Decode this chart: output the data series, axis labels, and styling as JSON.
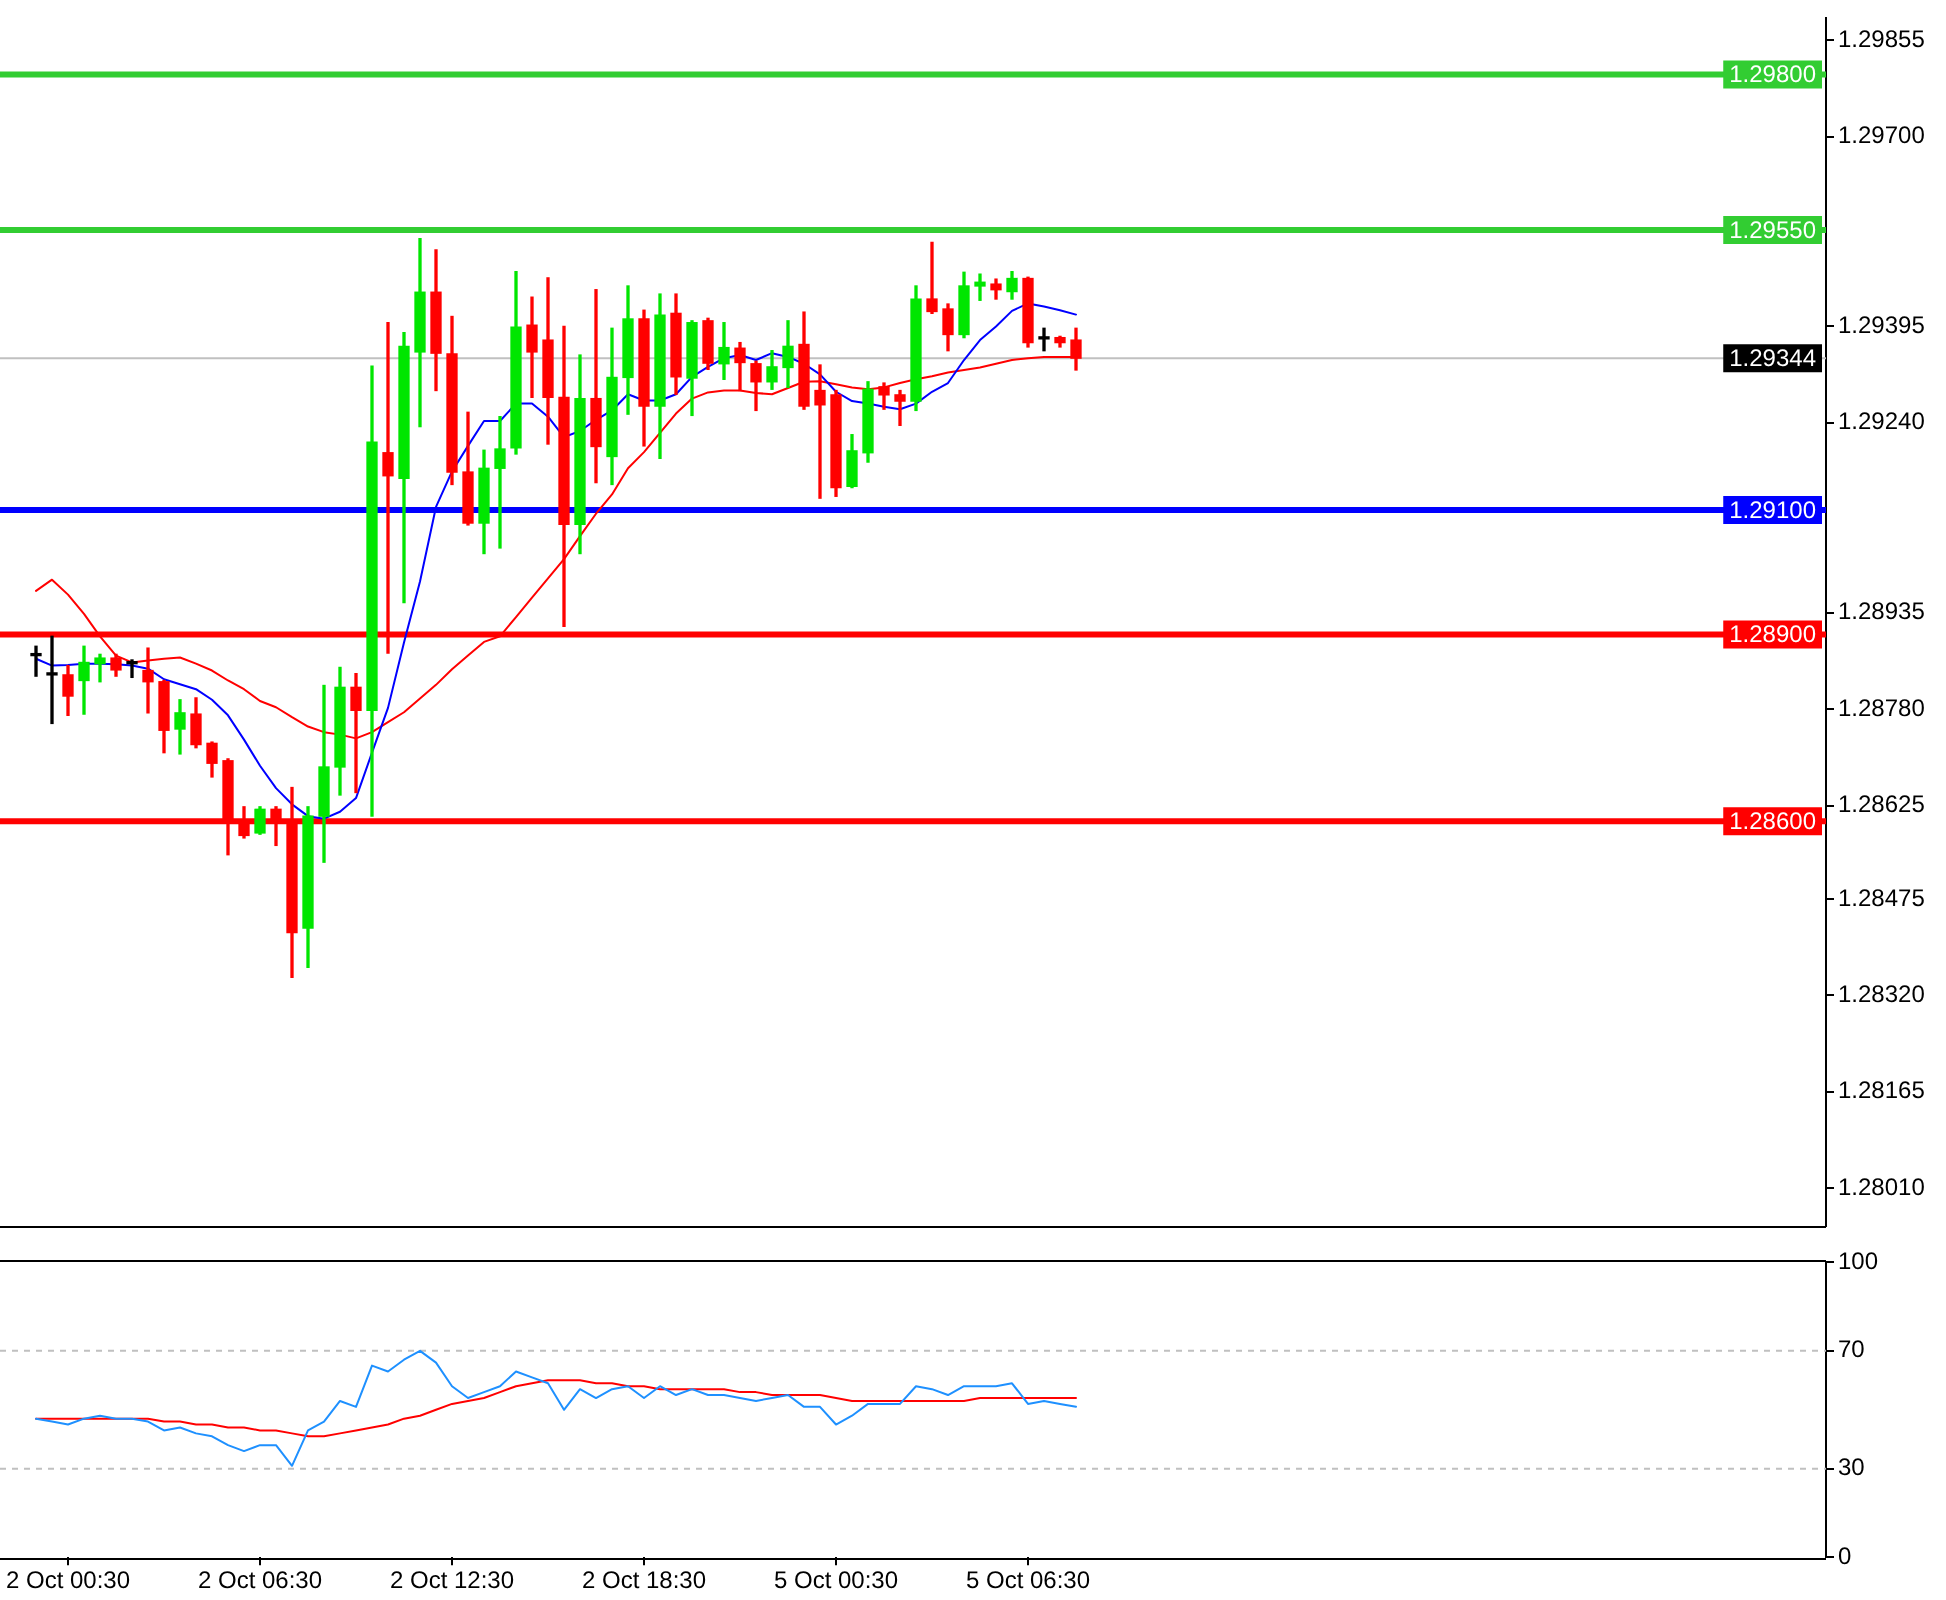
{
  "chart_data": [
    {
      "type": "candlestick",
      "categories": [
        null,
        null,
        null,
        null,
        null,
        null,
        null,
        null,
        null,
        null,
        null,
        null,
        null,
        null,
        null,
        null,
        null,
        null,
        null,
        null,
        null,
        null,
        null,
        null,
        null,
        null,
        null,
        null,
        null,
        null,
        null,
        null,
        null,
        null,
        null,
        null,
        null,
        null,
        null,
        null,
        null,
        null,
        null,
        null,
        null,
        null,
        null,
        null,
        null,
        null,
        null,
        null,
        null,
        null,
        null,
        null,
        null,
        null,
        null,
        null,
        null,
        null,
        null,
        null,
        null,
        null
      ],
      "ohlc": [
        [
          1.28866,
          1.28881,
          1.28833,
          1.28866
        ],
        [
          1.28835,
          1.28897,
          1.28757,
          1.28835
        ],
        [
          1.28835,
          1.2885,
          1.2877,
          1.28801
        ],
        [
          1.28826,
          1.28881,
          1.28772,
          1.28855
        ],
        [
          1.28853,
          1.28868,
          1.28824,
          1.28862
        ],
        [
          1.28862,
          1.28868,
          1.28833,
          1.28843
        ],
        [
          1.28853,
          1.28859,
          1.28831,
          1.28853
        ],
        [
          1.28842,
          1.28878,
          1.28774,
          1.28824
        ],
        [
          1.28824,
          1.28826,
          1.2871,
          1.28746
        ],
        [
          1.28748,
          1.28795,
          1.28708,
          1.28774
        ],
        [
          1.28772,
          1.28798,
          1.28718,
          1.28723
        ],
        [
          1.28725,
          1.28727,
          1.28671,
          1.28693
        ],
        [
          1.28697,
          1.287,
          1.28546,
          1.28598
        ],
        [
          1.286,
          1.28623,
          1.28573,
          1.28577
        ],
        [
          1.28581,
          1.28623,
          1.28579,
          1.28619
        ],
        [
          1.28619,
          1.28623,
          1.28561,
          1.28602
        ],
        [
          1.286,
          1.28654,
          1.28349,
          1.28421
        ],
        [
          1.28428,
          1.28623,
          1.28365,
          1.28608
        ],
        [
          1.28608,
          1.28818,
          1.28534,
          1.28687
        ],
        [
          1.28687,
          1.28847,
          1.28642,
          1.28815
        ],
        [
          1.28815,
          1.28837,
          1.28646,
          1.28778
        ],
        [
          1.28778,
          1.29331,
          1.28608,
          1.29209
        ],
        [
          1.29192,
          1.29401,
          1.2887,
          1.29155
        ],
        [
          1.29151,
          1.29385,
          1.28951,
          1.29363
        ],
        [
          1.29354,
          1.29536,
          1.29234,
          1.2945
        ],
        [
          1.2945,
          1.29518,
          1.29292,
          1.29352
        ],
        [
          1.29351,
          1.29411,
          1.29141,
          1.29161
        ],
        [
          1.29161,
          1.29257,
          1.29076,
          1.29079
        ],
        [
          1.29079,
          1.29196,
          1.2903,
          1.29167
        ],
        [
          1.29167,
          1.2925,
          1.29039,
          1.29198
        ],
        [
          1.292,
          1.29483,
          1.2919,
          1.29394
        ],
        [
          1.29397,
          1.29442,
          1.29281,
          1.29354
        ],
        [
          1.29373,
          1.29473,
          1.29206,
          1.29281
        ],
        [
          1.29281,
          1.29395,
          1.28913,
          1.29077
        ],
        [
          1.29077,
          1.29349,
          1.2903,
          1.29279
        ],
        [
          1.29279,
          1.29454,
          1.29144,
          1.29202
        ],
        [
          1.29186,
          1.29392,
          1.29141,
          1.29313
        ],
        [
          1.29313,
          1.2946,
          1.29254,
          1.29407
        ],
        [
          1.29407,
          1.29421,
          1.29203,
          1.29267
        ],
        [
          1.29267,
          1.29447,
          1.29183,
          1.29413
        ],
        [
          1.29416,
          1.29447,
          1.29286,
          1.29314
        ],
        [
          1.29312,
          1.29404,
          1.29252,
          1.29401
        ],
        [
          1.29404,
          1.29408,
          1.29326,
          1.29336
        ],
        [
          1.29335,
          1.29401,
          1.2931,
          1.29361
        ],
        [
          1.2936,
          1.29369,
          1.29292,
          1.29337
        ],
        [
          1.29335,
          1.29339,
          1.2926,
          1.29306
        ],
        [
          1.29306,
          1.29356,
          1.29294,
          1.2933
        ],
        [
          1.29329,
          1.29404,
          1.29297,
          1.29363
        ],
        [
          1.29366,
          1.29418,
          1.29262,
          1.29267
        ],
        [
          1.29292,
          1.29333,
          1.29119,
          1.29269
        ],
        [
          1.29285,
          1.29292,
          1.29122,
          1.29136
        ],
        [
          1.29138,
          1.29221,
          1.29136,
          1.29195
        ],
        [
          1.29192,
          1.29306,
          1.29177,
          1.29294
        ],
        [
          1.29298,
          1.29304,
          1.29262,
          1.29285
        ],
        [
          1.29285,
          1.29292,
          1.29236,
          1.29275
        ],
        [
          1.29275,
          1.2946,
          1.2926,
          1.29439
        ],
        [
          1.29439,
          1.2953,
          1.29416,
          1.29419
        ],
        [
          1.29423,
          1.29431,
          1.29356,
          1.29382
        ],
        [
          1.29382,
          1.29482,
          1.29377,
          1.2946
        ],
        [
          1.2946,
          1.29479,
          1.29437,
          1.29466
        ],
        [
          1.29463,
          1.29471,
          1.29439,
          1.29454
        ],
        [
          1.29451,
          1.29483,
          1.29439,
          1.29472
        ],
        [
          1.29472,
          1.29474,
          1.29362,
          1.29369
        ],
        [
          1.29375,
          1.29392,
          1.29356,
          1.29375
        ],
        [
          1.29377,
          1.29379,
          1.29362,
          1.29369
        ],
        [
          1.29373,
          1.29392,
          1.29325,
          1.29344
        ]
      ],
      "colors": [
        "#000000",
        "#000000",
        "#ff0000",
        "#00e600",
        "#00e600",
        "#ff0000",
        "#000000",
        "#ff0000",
        "#ff0000",
        "#00e600",
        "#ff0000",
        "#ff0000",
        "#ff0000",
        "#ff0000",
        "#00e600",
        "#ff0000",
        "#ff0000",
        "#00e600",
        "#00e600",
        "#00e600",
        "#ff0000",
        "#00e600",
        "#ff0000",
        "#00e600",
        "#00e600",
        "#ff0000",
        "#ff0000",
        "#ff0000",
        "#00e600",
        "#00e600",
        "#00e600",
        "#ff0000",
        "#ff0000",
        "#ff0000",
        "#00e600",
        "#ff0000",
        "#00e600",
        "#00e600",
        "#ff0000",
        "#00e600",
        "#ff0000",
        "#00e600",
        "#ff0000",
        "#00e600",
        "#ff0000",
        "#ff0000",
        "#00e600",
        "#00e600",
        "#ff0000",
        "#ff0000",
        "#ff0000",
        "#00e600",
        "#00e600",
        "#ff0000",
        "#ff0000",
        "#00e600",
        "#ff0000",
        "#ff0000",
        "#00e600",
        "#00e600",
        "#ff0000",
        "#00e600",
        "#ff0000",
        "#000000",
        "#ff0000",
        "#ff0000"
      ],
      "series": [
        {
          "type": "line",
          "color": "#0000ff",
          "values": [
            1.28861,
            1.2885,
            1.28851,
            1.28853,
            1.28853,
            1.28852,
            1.2885,
            1.28845,
            1.28828,
            1.2882,
            1.28812,
            1.28795,
            1.2877,
            1.28731,
            1.28689,
            1.28653,
            1.28627,
            1.28608,
            1.28604,
            1.28615,
            1.28637,
            1.2871,
            1.28782,
            1.28887,
            1.28985,
            1.29105,
            1.29162,
            1.29203,
            1.29243,
            1.29243,
            1.29271,
            1.29271,
            1.2925,
            1.29217,
            1.29227,
            1.29245,
            1.2926,
            1.29286,
            1.29276,
            1.29276,
            1.29286,
            1.29314,
            1.2933,
            1.29344,
            1.29349,
            1.29341,
            1.29352,
            1.29346,
            1.29335,
            1.29318,
            1.2929,
            1.29275,
            1.29271,
            1.29266,
            1.29262,
            1.29271,
            1.2929,
            1.29304,
            1.29341,
            1.29373,
            1.29395,
            1.2942,
            1.29432,
            1.29427,
            1.29421,
            1.29414
          ]
        },
        {
          "type": "line",
          "color": "#ff0000",
          "values": [
            1.2897,
            1.28988,
            1.28964,
            1.28933,
            1.28897,
            1.28866,
            1.28855,
            1.28858,
            1.28861,
            1.28863,
            1.28853,
            1.28842,
            1.28826,
            1.28812,
            1.28793,
            1.28783,
            1.28767,
            1.28752,
            1.28743,
            1.28739,
            1.28733,
            1.28743,
            1.28759,
            1.28775,
            1.28797,
            1.28819,
            1.28844,
            1.28866,
            1.28888,
            1.28897,
            1.28928,
            1.28959,
            1.2899,
            1.29021,
            1.29058,
            1.29094,
            1.29125,
            1.29167,
            1.29193,
            1.29224,
            1.29255,
            1.29279,
            1.29289,
            1.29292,
            1.29292,
            1.29288,
            1.29286,
            1.29296,
            1.29306,
            1.29307,
            1.29302,
            1.29297,
            1.29294,
            1.29297,
            1.29304,
            1.2931,
            1.29315,
            1.29321,
            1.29325,
            1.29329,
            1.29335,
            1.29341,
            1.29344,
            1.29346,
            1.29346,
            1.29346
          ]
        }
      ],
      "ylim": [
        1.2795,
        1.2989
      ],
      "yticks": [
        1.29855,
        {
          "value": 1.297,
          "label": "1.29700"
        },
        1.29395,
        {
          "value": 1.2924,
          "label": "1.29240"
        },
        1.28935,
        {
          "value": 1.2878,
          "label": "1.28780"
        },
        1.28625,
        1.28475,
        {
          "value": 1.2832,
          "label": "1.28320"
        },
        1.28165,
        {
          "value": 1.2801,
          "label": "1.28010"
        }
      ],
      "ref_lines": [
        {
          "axis": "y",
          "value": 1.298,
          "label": "1.29800",
          "color": "#32cd32"
        },
        {
          "axis": "y",
          "value": 1.2955,
          "label": "1.29550",
          "color": "#32cd32"
        },
        {
          "axis": "y",
          "value": 1.29344,
          "label": "1.29344",
          "color": "#c0c0c0"
        },
        {
          "axis": "y",
          "value": 1.291,
          "label": "1.29100",
          "color": "#0000ff"
        },
        {
          "axis": "y",
          "value": 1.289,
          "label": "1.28900",
          "color": "#ff0000"
        },
        {
          "axis": "y",
          "value": 1.286,
          "label": "1.28600",
          "color": "#ff0000"
        }
      ],
      "marker": "none",
      "tick_labels": "y"
    },
    {
      "type": "line",
      "categories": [
        null,
        null,
        "2 Oct 00:30",
        null,
        null,
        null,
        null,
        null,
        null,
        null,
        null,
        null,
        null,
        null,
        "2 Oct 06:30",
        null,
        null,
        null,
        null,
        null,
        null,
        null,
        null,
        null,
        null,
        null,
        "2 Oct 12:30",
        null,
        null,
        null,
        null,
        null,
        null,
        null,
        null,
        null,
        null,
        null,
        "2 Oct 18:30",
        null,
        null,
        null,
        null,
        null,
        null,
        null,
        null,
        null,
        null,
        null,
        "5 Oct 00:30",
        null,
        null,
        null,
        null,
        null,
        null,
        null,
        null,
        null,
        null,
        null,
        "5 Oct 06:30",
        null,
        null,
        null
      ],
      "series": [
        {
          "color": "#1e90ff",
          "values": [
            47,
            46,
            45,
            47,
            48,
            47,
            47,
            46,
            43,
            44,
            42,
            41,
            38,
            36,
            38,
            38,
            31,
            43,
            46,
            53,
            51,
            65,
            63,
            67,
            70,
            66,
            58,
            54,
            56,
            58,
            63,
            61,
            59,
            50,
            57,
            54,
            57,
            58,
            54,
            58,
            55,
            57,
            55,
            55,
            54,
            53,
            54,
            55,
            51,
            51,
            45,
            48,
            52,
            52,
            52,
            58,
            57,
            55,
            58,
            58,
            58,
            59,
            52,
            53,
            52,
            51
          ]
        },
        {
          "color": "#ff0000",
          "values": [
            47,
            47,
            47,
            47,
            47,
            47,
            47,
            47,
            46,
            46,
            45,
            45,
            44,
            44,
            43,
            43,
            42,
            41,
            41,
            42,
            43,
            44,
            45,
            47,
            48,
            50,
            52,
            53,
            54,
            56,
            58,
            59,
            60,
            60,
            60,
            59,
            59,
            58,
            58,
            57,
            57,
            57,
            57,
            57,
            56,
            56,
            55,
            55,
            55,
            55,
            54,
            53,
            53,
            53,
            53,
            53,
            53,
            53,
            53,
            54,
            54,
            54,
            54,
            54,
            54,
            54
          ]
        }
      ],
      "ylim": [
        0,
        100
      ],
      "yticks": [
        0,
        30,
        70,
        100
      ],
      "ref_lines": [
        {
          "axis": "y",
          "value": 70,
          "color": "#c0c0c0",
          "line_style": "dashed"
        },
        {
          "axis": "y",
          "value": 30,
          "color": "#c0c0c0",
          "line_style": "dashed"
        }
      ],
      "marker": "none"
    }
  ]
}
